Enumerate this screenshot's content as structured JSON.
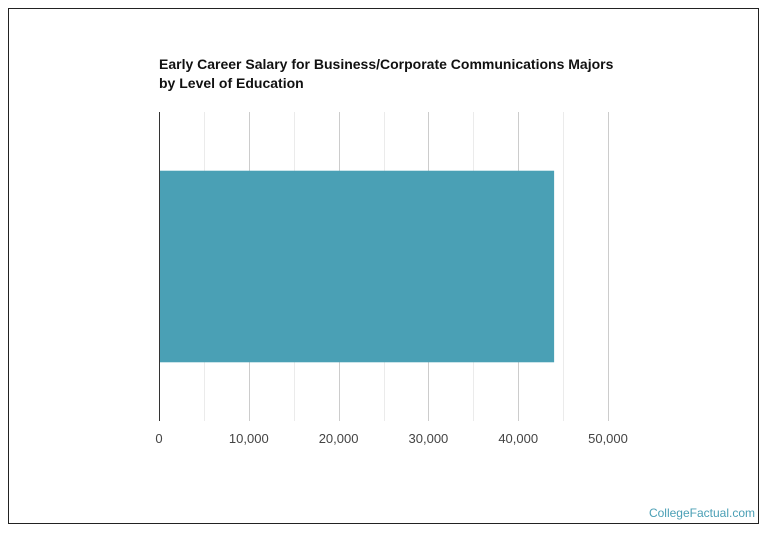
{
  "chart_data": {
    "type": "bar",
    "orientation": "horizontal",
    "title": "Early Career Salary for Business/Corporate Communications Majors by Level of Education",
    "categories": [
      ""
    ],
    "values": [
      44000
    ],
    "xlim": [
      0,
      50000
    ],
    "xticks": [
      0,
      10000,
      20000,
      30000,
      40000,
      50000
    ],
    "xtick_labels": [
      "0",
      "10,000",
      "20,000",
      "30,000",
      "40,000",
      "50,000"
    ],
    "minor_gridlines": [
      5000,
      15000,
      25000,
      35000,
      45000
    ],
    "grid": true,
    "bar_color": "#4aa0b5",
    "xlabel": "",
    "ylabel": ""
  },
  "watermark": "CollegeFactual.com"
}
